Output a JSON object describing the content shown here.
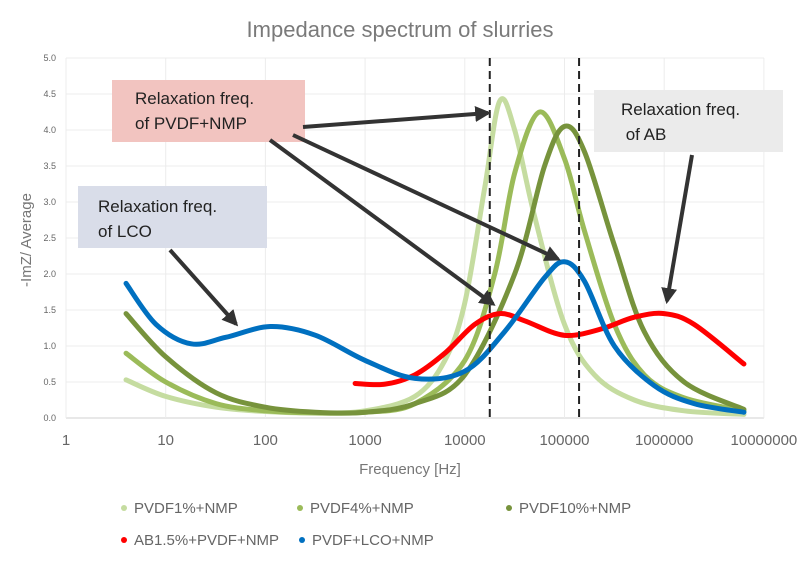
{
  "chart_data": {
    "type": "line",
    "title": "Impedance spectrum of slurries",
    "xlabel": "Frequency [Hz]",
    "ylabel": "-ImZ/ Average",
    "xscale": "log",
    "xlim": [
      1,
      10000000
    ],
    "ylim": [
      0,
      5
    ],
    "xticks": [
      "1",
      "10",
      "100",
      "1000",
      "10000",
      "100000",
      "1000000",
      "10000000"
    ],
    "yticks": [
      "0.0",
      "0.5",
      "1.0",
      "1.5",
      "2.0",
      "2.5",
      "3.0",
      "3.5",
      "4.0",
      "4.5",
      "5.0"
    ],
    "grid": true,
    "legend_position": "bottom",
    "vlines_hz": [
      17800,
      140000
    ],
    "series": [
      {
        "name": "PVDF1%+NMP",
        "color": "#c5dca0",
        "points": [
          [
            4,
            0.53
          ],
          [
            10,
            0.3
          ],
          [
            32,
            0.15
          ],
          [
            100,
            0.09
          ],
          [
            316,
            0.07
          ],
          [
            1000,
            0.1
          ],
          [
            3162,
            0.3
          ],
          [
            6310,
            0.8
          ],
          [
            10000,
            1.6
          ],
          [
            15849,
            3.2
          ],
          [
            22387,
            4.4
          ],
          [
            31623,
            4.0
          ],
          [
            50119,
            2.8
          ],
          [
            100000,
            1.3
          ],
          [
            199526,
            0.6
          ],
          [
            501187,
            0.25
          ],
          [
            1584893,
            0.1
          ],
          [
            6309573,
            0.05
          ]
        ]
      },
      {
        "name": "PVDF4%+NMP",
        "color": "#9bbb59",
        "points": [
          [
            4,
            0.9
          ],
          [
            10,
            0.5
          ],
          [
            32,
            0.2
          ],
          [
            100,
            0.1
          ],
          [
            316,
            0.07
          ],
          [
            1000,
            0.08
          ],
          [
            3162,
            0.2
          ],
          [
            10000,
            0.8
          ],
          [
            19953,
            2.0
          ],
          [
            31623,
            3.4
          ],
          [
            56234,
            4.25
          ],
          [
            100000,
            3.6
          ],
          [
            158489,
            2.6
          ],
          [
            316228,
            1.3
          ],
          [
            630957,
            0.6
          ],
          [
            1584893,
            0.28
          ],
          [
            6309573,
            0.1
          ]
        ]
      },
      {
        "name": "PVDF10%+NMP",
        "color": "#77933c",
        "points": [
          [
            4,
            1.45
          ],
          [
            10,
            0.85
          ],
          [
            32,
            0.35
          ],
          [
            100,
            0.15
          ],
          [
            316,
            0.08
          ],
          [
            1000,
            0.08
          ],
          [
            3162,
            0.2
          ],
          [
            10000,
            0.6
          ],
          [
            31623,
            2.0
          ],
          [
            63096,
            3.5
          ],
          [
            100000,
            4.05
          ],
          [
            158489,
            3.7
          ],
          [
            316228,
            2.4
          ],
          [
            630957,
            1.2
          ],
          [
            1584893,
            0.5
          ],
          [
            6309573,
            0.12
          ]
        ]
      },
      {
        "name": "AB1.5%+PVDF+NMP",
        "color": "#ff0000",
        "points": [
          [
            794,
            0.48
          ],
          [
            1585,
            0.47
          ],
          [
            3162,
            0.6
          ],
          [
            6310,
            0.9
          ],
          [
            12589,
            1.3
          ],
          [
            22387,
            1.45
          ],
          [
            39811,
            1.35
          ],
          [
            79433,
            1.18
          ],
          [
            125893,
            1.15
          ],
          [
            251189,
            1.25
          ],
          [
            501187,
            1.4
          ],
          [
            1000000,
            1.45
          ],
          [
            1995262,
            1.3
          ],
          [
            6309573,
            0.75
          ]
        ]
      },
      {
        "name": "PVDF+LCO+NMP",
        "color": "#0070c0",
        "points": [
          [
            4,
            1.87
          ],
          [
            8,
            1.3
          ],
          [
            18,
            1.03
          ],
          [
            40,
            1.12
          ],
          [
            112,
            1.27
          ],
          [
            316,
            1.15
          ],
          [
            1000,
            0.8
          ],
          [
            3162,
            0.55
          ],
          [
            10000,
            0.65
          ],
          [
            25119,
            1.2
          ],
          [
            63096,
            1.95
          ],
          [
            100000,
            2.17
          ],
          [
            158489,
            1.9
          ],
          [
            316228,
            1.0
          ],
          [
            794328,
            0.45
          ],
          [
            1995262,
            0.2
          ],
          [
            6309573,
            0.08
          ]
        ]
      }
    ],
    "annotations": [
      {
        "id": "pvdf",
        "line1": "Relaxation freq.",
        "line2": "of PVDF+NMP",
        "color": "#f2c4c0"
      },
      {
        "id": "ab",
        "line1": "Relaxation freq.",
        "line2": " of AB",
        "color": "#ebebeb"
      },
      {
        "id": "lco",
        "line1": "Relaxation freq.",
        "line2": "of LCO",
        "color": "#d9dde9"
      }
    ]
  }
}
